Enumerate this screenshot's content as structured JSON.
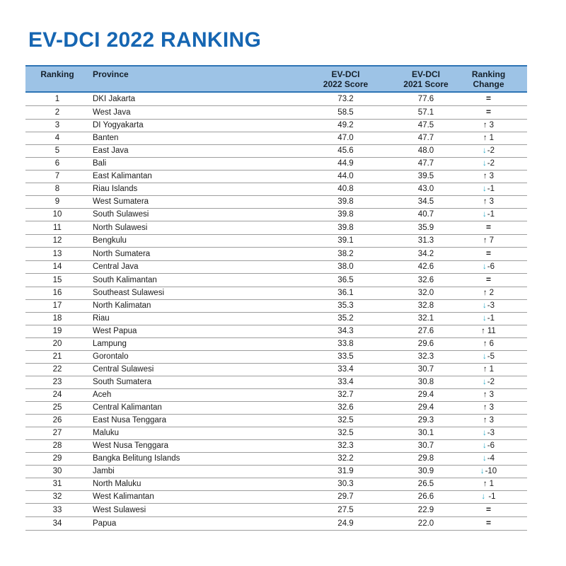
{
  "colors": {
    "title_blue": "#1666B2",
    "header_bg": "#9DC3E6",
    "header_border": "#2E74B5",
    "row_line": "#9E9E9E",
    "text_dark": "#1A1A1A",
    "arrow_up": "#1A1A1A",
    "arrow_down": "#2BA8C6"
  },
  "icons": {
    "up-arrow": "↑",
    "down-arrow": "↓",
    "no-change-equals": "="
  },
  "chart_data": {
    "type": "table",
    "title": "EV-DCI 2022 RANKING",
    "columns": [
      "Ranking",
      "Province",
      "EV-DCI\n2022 Score",
      "EV-DCI\n2021 Score",
      "Ranking\nChange"
    ],
    "rows": [
      {
        "rank": "1",
        "province": "DKI Jakarta",
        "score_2022": "73.2",
        "score_2021": "77.6",
        "change_dir": "same",
        "change_arrow": "=",
        "change_num": ""
      },
      {
        "rank": "2",
        "province": "West Java",
        "score_2022": "58.5",
        "score_2021": "57.1",
        "change_dir": "same",
        "change_arrow": "=",
        "change_num": ""
      },
      {
        "rank": "3",
        "province": "DI Yogyakarta",
        "score_2022": "49.2",
        "score_2021": "47.5",
        "change_dir": "up",
        "change_arrow": "↑",
        "change_num": "3"
      },
      {
        "rank": "4",
        "province": "Banten",
        "score_2022": "47.0",
        "score_2021": "47.7",
        "change_dir": "up",
        "change_arrow": "↑",
        "change_num": "1"
      },
      {
        "rank": "5",
        "province": "East Java",
        "score_2022": "45.6",
        "score_2021": "48.0",
        "change_dir": "down",
        "change_arrow": "↓",
        "change_num": "-2"
      },
      {
        "rank": "6",
        "province": "Bali",
        "score_2022": "44.9",
        "score_2021": "47.7",
        "change_dir": "down",
        "change_arrow": "↓",
        "change_num": "-2"
      },
      {
        "rank": "7",
        "province": "East Kalimantan",
        "score_2022": "44.0",
        "score_2021": "39.5",
        "change_dir": "up",
        "change_arrow": "↑",
        "change_num": "3"
      },
      {
        "rank": "8",
        "province": "Riau Islands",
        "score_2022": "40.8",
        "score_2021": "43.0",
        "change_dir": "down",
        "change_arrow": "↓",
        "change_num": "-1"
      },
      {
        "rank": "9",
        "province": "West Sumatera",
        "score_2022": "39.8",
        "score_2021": "34.5",
        "change_dir": "up",
        "change_arrow": "↑",
        "change_num": "3"
      },
      {
        "rank": "10",
        "province": "South Sulawesi",
        "score_2022": "39.8",
        "score_2021": "40.7",
        "change_dir": "down",
        "change_arrow": "↓",
        "change_num": "-1"
      },
      {
        "rank": "11",
        "province": "North Sulawesi",
        "score_2022": "39.8",
        "score_2021": "35.9",
        "change_dir": "same",
        "change_arrow": "=",
        "change_num": ""
      },
      {
        "rank": "12",
        "province": "Bengkulu",
        "score_2022": "39.1",
        "score_2021": "31.3",
        "change_dir": "up",
        "change_arrow": "↑",
        "change_num": "7"
      },
      {
        "rank": "13",
        "province": "North Sumatera",
        "score_2022": "38.2",
        "score_2021": "34.2",
        "change_dir": "same",
        "change_arrow": "=",
        "change_num": ""
      },
      {
        "rank": "14",
        "province": "Central Java",
        "score_2022": "38.0",
        "score_2021": "42.6",
        "change_dir": "down",
        "change_arrow": "↓",
        "change_num": "-6"
      },
      {
        "rank": "15",
        "province": "South Kalimantan",
        "score_2022": "36.5",
        "score_2021": "32.6",
        "change_dir": "same",
        "change_arrow": "=",
        "change_num": ""
      },
      {
        "rank": "16",
        "province": "Southeast Sulawesi",
        "score_2022": "36.1",
        "score_2021": "32.0",
        "change_dir": "up",
        "change_arrow": "↑",
        "change_num": "2"
      },
      {
        "rank": "17",
        "province": "North Kalimatan",
        "score_2022": "35.3",
        "score_2021": "32.8",
        "change_dir": "down",
        "change_arrow": "↓",
        "change_num": "-3"
      },
      {
        "rank": "18",
        "province": "Riau",
        "score_2022": "35.2",
        "score_2021": "32.1",
        "change_dir": "down",
        "change_arrow": "↓",
        "change_num": "-1"
      },
      {
        "rank": "19",
        "province": "West Papua",
        "score_2022": "34.3",
        "score_2021": "27.6",
        "change_dir": "up",
        "change_arrow": "↑",
        "change_num": "11"
      },
      {
        "rank": "20",
        "province": "Lampung",
        "score_2022": "33.8",
        "score_2021": "29.6",
        "change_dir": "up",
        "change_arrow": "↑",
        "change_num": "6"
      },
      {
        "rank": "21",
        "province": "Gorontalo",
        "score_2022": "33.5",
        "score_2021": "32.3",
        "change_dir": "down",
        "change_arrow": "↓",
        "change_num": "-5"
      },
      {
        "rank": "22",
        "province": "Central Sulawesi",
        "score_2022": "33.4",
        "score_2021": "30.7",
        "change_dir": "up",
        "change_arrow": "↑",
        "change_num": "1"
      },
      {
        "rank": "23",
        "province": "South Sumatera",
        "score_2022": "33.4",
        "score_2021": "30.8",
        "change_dir": "down",
        "change_arrow": "↓",
        "change_num": "-2"
      },
      {
        "rank": "24",
        "province": "Aceh",
        "score_2022": "32.7",
        "score_2021": "29.4",
        "change_dir": "up",
        "change_arrow": "↑",
        "change_num": "3"
      },
      {
        "rank": "25",
        "province": "Central Kalimantan",
        "score_2022": "32.6",
        "score_2021": "29.4",
        "change_dir": "up",
        "change_arrow": "↑",
        "change_num": "3"
      },
      {
        "rank": "26",
        "province": "East Nusa Tenggara",
        "score_2022": "32.5",
        "score_2021": "29.3",
        "change_dir": "up",
        "change_arrow": "↑",
        "change_num": "3"
      },
      {
        "rank": "27",
        "province": "Maluku",
        "score_2022": "32.5",
        "score_2021": "30.1",
        "change_dir": "down",
        "change_arrow": "↓",
        "change_num": "-3"
      },
      {
        "rank": "28",
        "province": "West Nusa Tenggara",
        "score_2022": "32.3",
        "score_2021": "30.7",
        "change_dir": "down",
        "change_arrow": "↓",
        "change_num": "-6"
      },
      {
        "rank": "29",
        "province": "Bangka Belitung Islands",
        "score_2022": "32.2",
        "score_2021": "29.8",
        "change_dir": "down",
        "change_arrow": "↓",
        "change_num": "-4"
      },
      {
        "rank": "30",
        "province": "Jambi",
        "score_2022": "31.9",
        "score_2021": "30.9",
        "change_dir": "down",
        "change_arrow": "↓",
        "change_num": "-10"
      },
      {
        "rank": "31",
        "province": "North Maluku",
        "score_2022": "30.3",
        "score_2021": "26.5",
        "change_dir": "up",
        "change_arrow": "↑",
        "change_num": "1"
      },
      {
        "rank": "32",
        "province": "West Kalimantan",
        "score_2022": "29.7",
        "score_2021": "26.6",
        "change_dir": "down",
        "change_arrow": "↓",
        "change_num": " -1"
      },
      {
        "rank": "33",
        "province": "West Sulawesi",
        "score_2022": "27.5",
        "score_2021": "22.9",
        "change_dir": "same",
        "change_arrow": "=",
        "change_num": ""
      },
      {
        "rank": "34",
        "province": "Papua",
        "score_2022": "24.9",
        "score_2021": "22.0",
        "change_dir": "same",
        "change_arrow": "=",
        "change_num": ""
      }
    ]
  }
}
